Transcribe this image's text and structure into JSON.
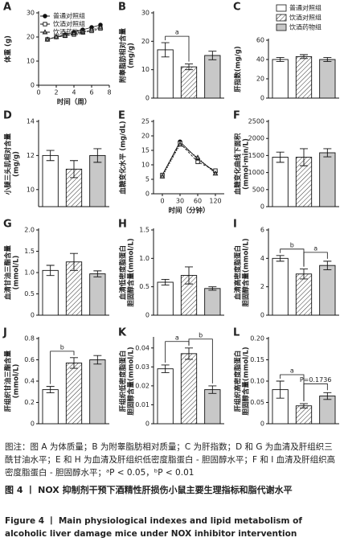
{
  "chart_data": [
    {
      "panel": "A",
      "type": "line",
      "ylabel": [
        "体重 (g)"
      ],
      "xlabel": "时间（周）",
      "x": [
        1,
        2,
        3,
        4,
        5,
        6,
        7
      ],
      "xlim": [
        0,
        8
      ],
      "xticks": [
        0,
        2,
        4,
        6,
        8
      ],
      "ylim": [
        0,
        30
      ],
      "yticks": [
        0,
        10,
        20,
        30
      ],
      "series": [
        {
          "name": "普通对照组",
          "values": [
            19,
            20,
            21,
            22,
            23,
            24,
            25
          ]
        },
        {
          "name": "饮酒对照组",
          "values": [
            19,
            20,
            20.5,
            21,
            22,
            22.5,
            23.5
          ]
        },
        {
          "name": "饮酒药物组",
          "values": [
            19,
            20,
            20.5,
            21.5,
            22,
            23,
            24
          ]
        }
      ]
    },
    {
      "panel": "B",
      "type": "bar",
      "ylabel": [
        "附睾脂肪相对含量",
        "(mg/g)"
      ],
      "ylim": [
        0,
        30
      ],
      "yticks": [
        0,
        10,
        20,
        30
      ],
      "values": [
        17,
        11,
        15
      ],
      "errors": [
        2.5,
        1,
        1.5
      ],
      "annotations": [
        "a"
      ]
    },
    {
      "panel": "C",
      "type": "bar",
      "ylabel": [
        "肝指数(mg/g)"
      ],
      "ylim": [
        0,
        60
      ],
      "yticks": [
        0,
        20,
        40,
        60
      ],
      "values": [
        40,
        43,
        40
      ],
      "errors": [
        2,
        2,
        2
      ],
      "legend": [
        "普通对照组",
        "饮酒对照组",
        "饮酒药物组"
      ]
    },
    {
      "panel": "D",
      "type": "bar",
      "ylabel": [
        "小腿三头肌相对含量",
        "(mg/g)"
      ],
      "ylim": [
        9,
        14
      ],
      "yticks": [
        10,
        12,
        14
      ],
      "values": [
        12,
        11.2,
        12
      ],
      "errors": [
        0.3,
        0.5,
        0.4
      ]
    },
    {
      "panel": "E",
      "type": "line",
      "ylabel": [
        "血糖变化水平 (mg/dL)"
      ],
      "xlabel": "时间（分钟）",
      "categories": [
        "0",
        "30",
        "60",
        "120"
      ],
      "ylim": [
        0,
        25
      ],
      "yticks": [
        0,
        5,
        10,
        15,
        20,
        25
      ],
      "series": [
        {
          "values": [
            6.5,
            18,
            12,
            7.5
          ]
        },
        {
          "values": [
            6.5,
            17.5,
            11,
            8
          ]
        },
        {
          "values": [
            6,
            17,
            12.5,
            7
          ]
        }
      ]
    },
    {
      "panel": "F",
      "type": "bar",
      "ylabel": [
        "血糖变化曲线下面积",
        "(mmol·min/L)"
      ],
      "ylim": [
        0,
        2500
      ],
      "yticks": [
        0,
        500,
        1000,
        1500,
        2000,
        2500
      ],
      "values": [
        1450,
        1450,
        1580
      ],
      "errors": [
        150,
        250,
        120
      ]
    },
    {
      "panel": "G",
      "type": "bar",
      "ylabel": [
        "血清甘油三酯含量",
        "(mmol/L)"
      ],
      "ylim": [
        0,
        2
      ],
      "yticks": [
        0,
        0.5,
        {
          "value": 1,
          "label": "1.0"
        },
        1.5,
        {
          "value": 2,
          "label": "2.0"
        }
      ],
      "values": [
        1.05,
        1.25,
        0.97
      ],
      "errors": [
        0.12,
        0.2,
        0.07
      ]
    },
    {
      "panel": "H",
      "type": "bar",
      "ylabel": [
        "血清低密度脂蛋白",
        "胆固醇含量(mmol/L)"
      ],
      "ylim": [
        0,
        1.5
      ],
      "yticks": [
        0,
        0.5,
        {
          "value": 1,
          "label": "1.0"
        },
        1.5
      ],
      "values": [
        0.58,
        0.7,
        0.47
      ],
      "errors": [
        0.05,
        0.15,
        0.03
      ]
    },
    {
      "panel": "I",
      "type": "bar",
      "ylabel": [
        "血清高密度脂蛋白",
        "胆固醇含量(mmol/L)"
      ],
      "ylim": [
        0,
        6
      ],
      "yticks": [
        0,
        2,
        4,
        6
      ],
      "values": [
        4,
        2.9,
        3.5
      ],
      "errors": [
        0.2,
        0.35,
        0.3
      ],
      "annotations": [
        "b",
        "a"
      ]
    },
    {
      "panel": "J",
      "type": "bar",
      "ylabel": [
        "肝组织甘油三酯含量",
        "(mmol/L)"
      ],
      "ylim": [
        0,
        0.8
      ],
      "yticks": [
        0,
        0.2,
        0.4,
        0.6,
        0.8
      ],
      "values": [
        0.32,
        0.57,
        0.6
      ],
      "errors": [
        0.03,
        0.05,
        0.04
      ],
      "annotations": [
        "b"
      ]
    },
    {
      "panel": "K",
      "type": "bar",
      "ylabel": [
        "肝组织低密度脂蛋白",
        "胆固醇含量(mmol/L)"
      ],
      "ylim": [
        0,
        0.045
      ],
      "yticks": [
        0,
        0.01,
        0.02,
        0.03,
        0.04
      ],
      "values": [
        0.029,
        0.037,
        0.018
      ],
      "errors": [
        0.002,
        0.003,
        0.002
      ],
      "annotations": [
        "a",
        "b"
      ]
    },
    {
      "panel": "L",
      "type": "bar",
      "ylabel": [
        "肝组织高密度脂蛋白",
        "胆固醇含量(mmol/L)"
      ],
      "ylim": [
        0,
        0.2
      ],
      "yticks": [
        0,
        0.05,
        {
          "value": 0.1,
          "label": "0.10"
        },
        0.15,
        {
          "value": 0.2,
          "label": "0.20"
        }
      ],
      "values": [
        0.08,
        0.042,
        0.065
      ],
      "errors": [
        0.02,
        0.005,
        0.008
      ],
      "annotations": [
        "a",
        "P=0.1736"
      ]
    }
  ],
  "caption": {
    "note": "图注：图 A 为体质量；B 为附睾脂肪相对质量；C 为肝指数；D 和 G 为血清及肝组织三酰甘油水平；E 和 H 为血清及肝组织低密度脂蛋白 - 胆固醇水平；F 和 I 血清及肝组织高密度脂蛋白 - 胆固醇水平；ᵃP < 0.05，ᵇP < 0.01",
    "title_cn": "图 4 丨 NOX 抑制剂干预下酒精性肝损伤小鼠主要生理指标和脂代谢水平",
    "title_en": "Figure 4 丨 Main physiological indexes and lipid metabolism of alcoholic liver damage mice under NOX inhibitor intervention"
  }
}
